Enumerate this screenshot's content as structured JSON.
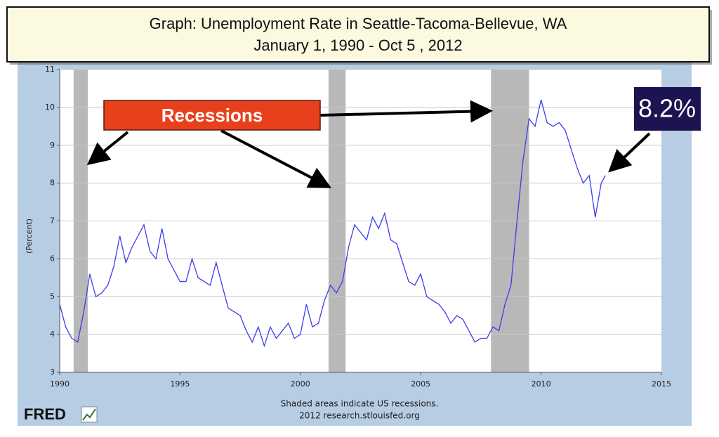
{
  "chart_data": {
    "type": "line",
    "title": "Graph:   Unemployment Rate in Seattle-Tacoma-Bellevue, WA",
    "subtitle": "January 1, 1990 -  Oct 5 ,  2012",
    "y_label": "(Percent)",
    "x": [
      1990.0,
      1990.25,
      1990.5,
      1990.75,
      1991.0,
      1991.25,
      1991.5,
      1991.75,
      1992.0,
      1992.25,
      1992.5,
      1992.75,
      1993.0,
      1993.25,
      1993.5,
      1993.75,
      1994.0,
      1994.25,
      1994.5,
      1994.75,
      1995.0,
      1995.25,
      1995.5,
      1995.75,
      1996.0,
      1996.25,
      1996.5,
      1996.75,
      1997.0,
      1997.25,
      1997.5,
      1997.75,
      1998.0,
      1998.25,
      1998.5,
      1998.75,
      1999.0,
      1999.25,
      1999.5,
      1999.75,
      2000.0,
      2000.25,
      2000.5,
      2000.75,
      2001.0,
      2001.25,
      2001.5,
      2001.75,
      2002.0,
      2002.25,
      2002.5,
      2002.75,
      2003.0,
      2003.25,
      2003.5,
      2003.75,
      2004.0,
      2004.25,
      2004.5,
      2004.75,
      2005.0,
      2005.25,
      2005.5,
      2005.75,
      2006.0,
      2006.25,
      2006.5,
      2006.75,
      2007.0,
      2007.25,
      2007.5,
      2007.75,
      2008.0,
      2008.25,
      2008.5,
      2008.75,
      2009.0,
      2009.25,
      2009.5,
      2009.75,
      2010.0,
      2010.25,
      2010.5,
      2010.75,
      2011.0,
      2011.25,
      2011.5,
      2011.75,
      2012.0,
      2012.25,
      2012.5,
      2012.67
    ],
    "series": [
      {
        "name": "Unemployment Rate",
        "color": "#3c3cf0",
        "values": [
          4.8,
          4.2,
          3.9,
          3.8,
          4.6,
          5.6,
          5.0,
          5.1,
          5.3,
          5.8,
          6.6,
          5.9,
          6.3,
          6.6,
          6.9,
          6.2,
          6.0,
          6.8,
          6.0,
          5.7,
          5.4,
          5.4,
          6.0,
          5.5,
          5.4,
          5.3,
          5.9,
          5.3,
          4.7,
          4.6,
          4.5,
          4.1,
          3.8,
          4.2,
          3.7,
          4.2,
          3.9,
          4.1,
          4.3,
          3.9,
          4.0,
          4.8,
          4.2,
          4.3,
          4.9,
          5.3,
          5.1,
          5.4,
          6.3,
          6.9,
          6.7,
          6.5,
          7.1,
          6.8,
          7.2,
          6.5,
          6.4,
          5.9,
          5.4,
          5.3,
          5.6,
          5.0,
          4.9,
          4.8,
          4.6,
          4.3,
          4.5,
          4.4,
          4.1,
          3.8,
          3.9,
          3.9,
          4.2,
          4.1,
          4.8,
          5.3,
          7.0,
          8.6,
          9.7,
          9.5,
          10.2,
          9.6,
          9.5,
          9.6,
          9.4,
          8.9,
          8.4,
          8.0,
          8.2,
          7.1,
          8.0,
          8.2
        ]
      }
    ],
    "recessions": [
      [
        1990.58,
        1991.17
      ],
      [
        2001.17,
        2001.88
      ],
      [
        2007.92,
        2009.5
      ]
    ],
    "xlim": [
      1990,
      2015
    ],
    "xticks": [
      1990,
      1995,
      2000,
      2005,
      2010,
      2015
    ],
    "ylim": [
      3,
      11
    ],
    "yticks": [
      3,
      4,
      5,
      6,
      7,
      8,
      9,
      10,
      11
    ],
    "grid": true,
    "annotations": [
      "Recessions",
      "8.2%"
    ],
    "notes": [
      "Shaded areas indicate US recessions.",
      "2012 research.stlouisfed.org"
    ],
    "logo": "FRED"
  }
}
